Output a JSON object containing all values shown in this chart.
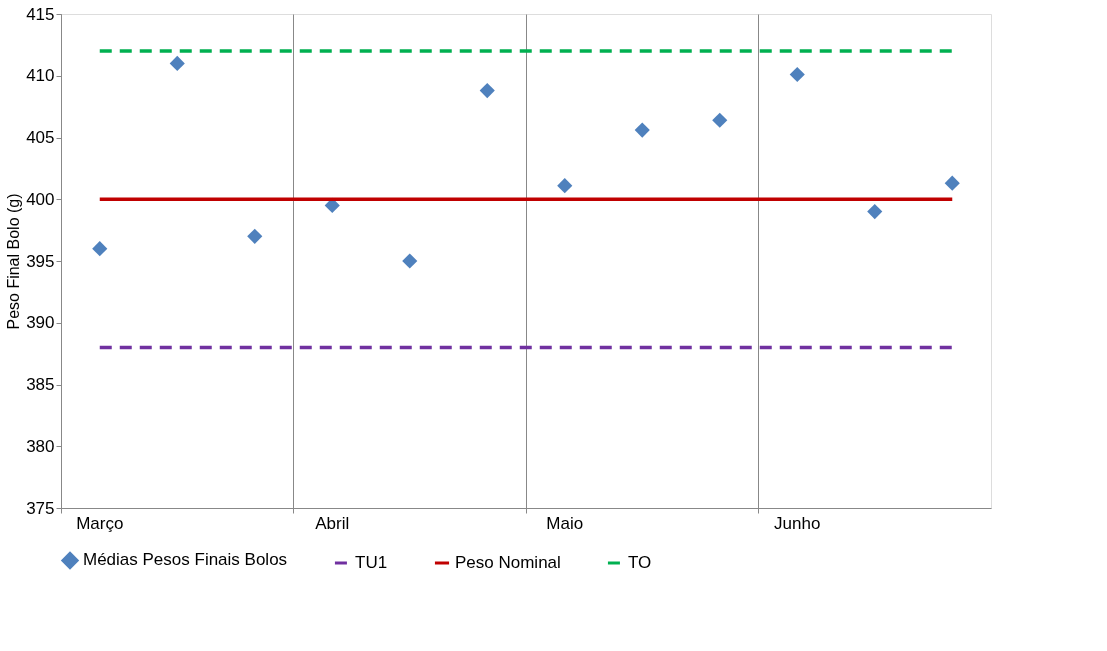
{
  "chart_data": {
    "type": "scatter",
    "ylabel": "Peso Final Bolo (g)",
    "categories": [
      "Março",
      null,
      null,
      "Abril",
      null,
      null,
      "Maio",
      null,
      null,
      "Junho",
      null,
      null
    ],
    "series": [
      {
        "name": "Médias Pesos Finais Bolos",
        "color": "#4f81bd",
        "values": [
          396,
          411,
          397,
          399.5,
          395,
          408.8,
          401.1,
          405.6,
          406.4,
          410.1,
          399,
          401.3
        ]
      }
    ],
    "ref_lines": [
      {
        "axis": "y",
        "value": 388,
        "label": "TU1",
        "color": "#7030a0",
        "line_style": "dashed"
      },
      {
        "axis": "y",
        "value": 400,
        "label": "Peso Nominal",
        "color": "#c00000",
        "line_style": "solid"
      },
      {
        "axis": "y",
        "value": 412,
        "label": "TO",
        "color": "#00b050",
        "line_style": "dashed"
      }
    ],
    "ylim": [
      375,
      415
    ],
    "yticks": [
      375,
      380,
      385,
      390,
      395,
      400,
      405,
      410,
      415
    ],
    "grid": "x",
    "legend": "bottom",
    "marker": "diamond"
  }
}
